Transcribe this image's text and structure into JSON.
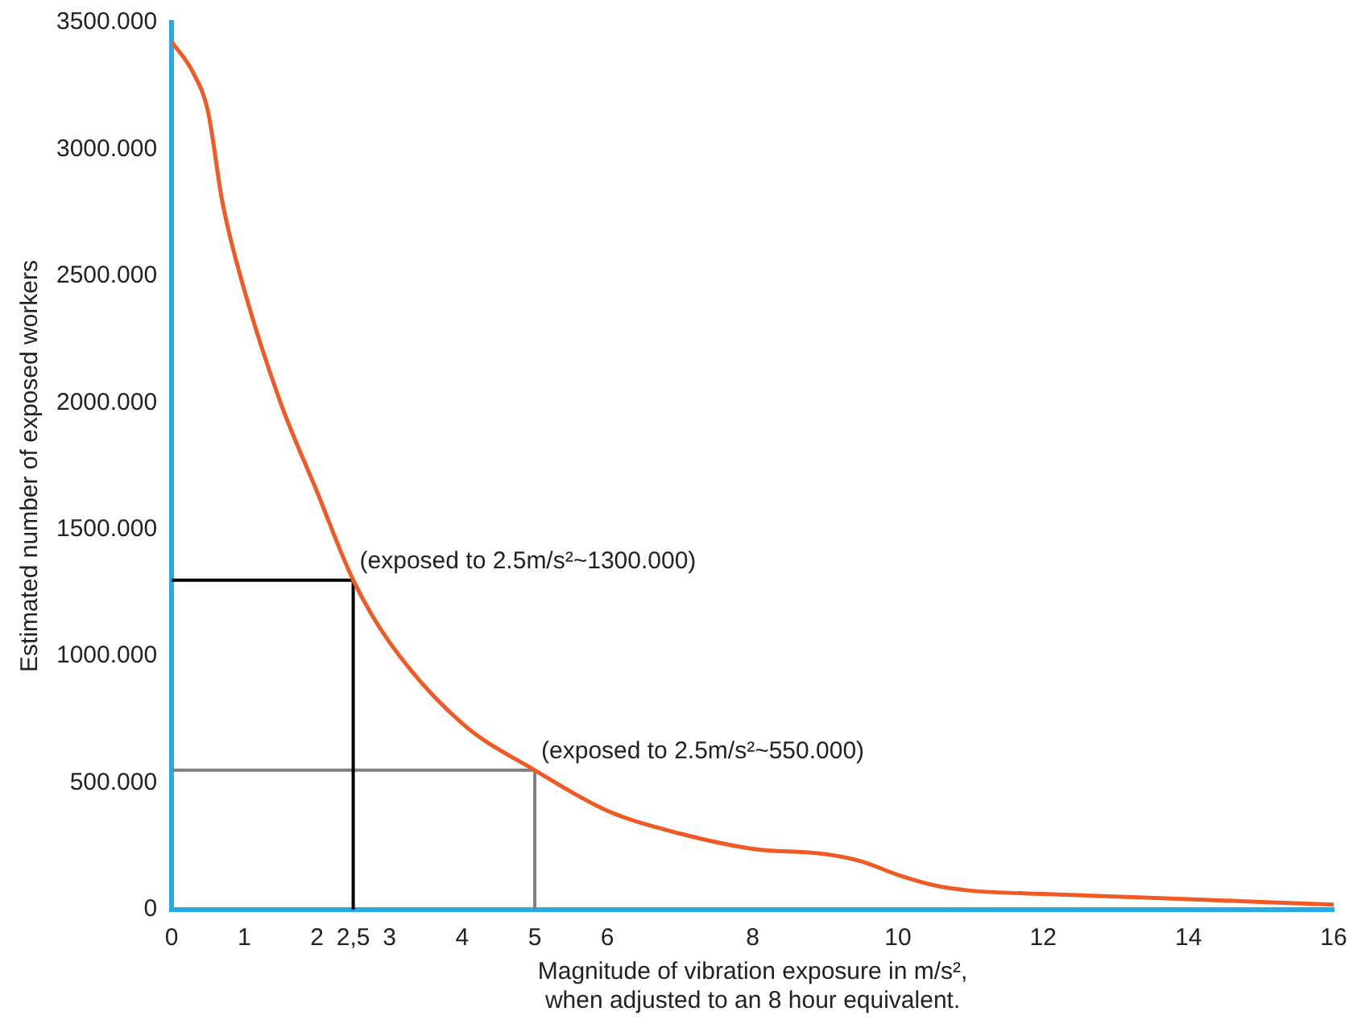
{
  "chart_data": {
    "type": "line",
    "xlabel": "Magnitude of vibration exposure in m/s²,\nwhen adjusted to an 8 hour equivalent.",
    "ylabel": "Estimated number of exposed workers",
    "xlim": [
      0,
      16
    ],
    "xticks": [
      0,
      1,
      2,
      {
        "value": 2.5,
        "label": "2,5"
      },
      3,
      4,
      5,
      6,
      8,
      10,
      12,
      14,
      16
    ],
    "ylim": [
      0,
      3500
    ],
    "yticks": [
      {
        "value": 0,
        "label": "0"
      },
      {
        "value": 500,
        "label": "500.000"
      },
      {
        "value": 1000,
        "label": "1000.000"
      },
      {
        "value": 1500,
        "label": "1500.000"
      },
      {
        "value": 2000,
        "label": "2000.000"
      },
      {
        "value": 2500,
        "label": "2500.000"
      },
      {
        "value": 3000,
        "label": "3000.000"
      },
      {
        "value": 3500,
        "label": "3500.000"
      }
    ],
    "grid": false,
    "marker": "none",
    "line_style": "solid",
    "series": [
      {
        "color": "#f15a24",
        "x": [
          0,
          0.3,
          0.5,
          0.7,
          1,
          1.5,
          2,
          2.5,
          3,
          4,
          5,
          6,
          7,
          8,
          9,
          9.5,
          10,
          10.5,
          11,
          12,
          14,
          16
        ],
        "values": [
          3425,
          3300,
          3150,
          2790,
          2445,
          2000,
          1650,
          1300,
          1055,
          735,
          550,
          390,
          300,
          240,
          219,
          190,
          137,
          96,
          75,
          62,
          41,
          20
        ]
      },
      {
        "color": "#000000",
        "x": [
          0,
          2.5,
          2.5
        ],
        "values": [
          1300,
          1300,
          0
        ]
      },
      {
        "color": "#808080",
        "x": [
          0,
          5,
          5
        ],
        "values": [
          550,
          550,
          0
        ]
      }
    ],
    "annotations": [
      {
        "text": "(exposed to 2.5m/s²~1300.000)",
        "x": 2.5,
        "y": 1300
      },
      {
        "text": "(exposed to 2.5m/s²~550.000)",
        "x": 5,
        "y": 550
      }
    ]
  }
}
